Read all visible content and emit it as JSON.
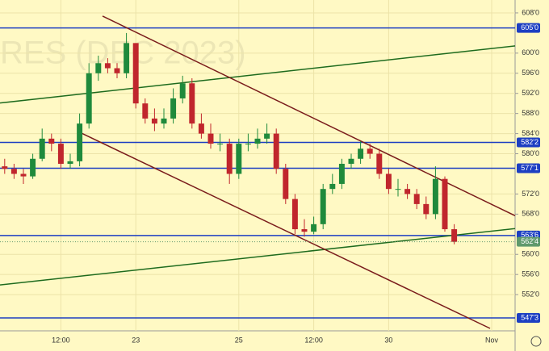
{
  "chart_data": {
    "type": "candlestick",
    "watermark": "RES (DEC 2023)",
    "up_color": "#1f8a3c",
    "down_color": "#c0262d",
    "xlim": [
      -0.5,
      54.5
    ],
    "xticks": [
      {
        "value": 6,
        "label": "12:00"
      },
      {
        "value": 14,
        "label": "23"
      },
      {
        "value": 25,
        "label": "25"
      },
      {
        "value": 33,
        "label": "12:00"
      },
      {
        "value": 41,
        "label": "30"
      },
      {
        "value": 52,
        "label": "Nov"
      }
    ],
    "ylim": [
      544.8,
      610.56
    ],
    "yticks": [
      {
        "value": 608,
        "label": "608'0"
      },
      {
        "value": 600,
        "label": "600'0"
      },
      {
        "value": 596,
        "label": "596'0"
      },
      {
        "value": 592,
        "label": "592'0"
      },
      {
        "value": 588,
        "label": "588'0"
      },
      {
        "value": 584,
        "label": "584'0"
      },
      {
        "value": 580,
        "label": "580'0"
      },
      {
        "value": 572,
        "label": "572'0"
      },
      {
        "value": 568,
        "label": "568'0"
      },
      {
        "value": 560,
        "label": "560'0"
      },
      {
        "value": 556,
        "label": "556'0"
      },
      {
        "value": 552,
        "label": "552'0"
      }
    ],
    "grid": true,
    "open": [
      577.5,
      577,
      576,
      575.5,
      579,
      583,
      582,
      578,
      578.5,
      586,
      596,
      598,
      597,
      596,
      602,
      590,
      587,
      586,
      587,
      591,
      594,
      586,
      584,
      582,
      582,
      576,
      582,
      582,
      583,
      584,
      577,
      571,
      565,
      564.5,
      566,
      573,
      574,
      578,
      579,
      581,
      580,
      576,
      573,
      573,
      572,
      570,
      568,
      575,
      565
    ],
    "high": [
      579,
      578,
      577,
      580,
      585,
      584,
      583,
      580,
      588,
      598,
      599.5,
      599,
      598,
      604,
      602,
      591,
      589,
      589,
      593,
      595.5,
      595,
      588,
      586,
      584,
      583,
      583,
      584,
      585,
      586,
      585,
      578,
      572,
      567,
      567.5,
      574,
      576,
      579,
      580,
      582.5,
      582,
      581,
      577,
      575,
      574,
      573,
      571.5,
      577.5,
      575.5,
      566
    ],
    "low": [
      576,
      575,
      574,
      575,
      578.5,
      580.5,
      577,
      577,
      577.5,
      585,
      594.5,
      596,
      595,
      595,
      589,
      586,
      584.5,
      585,
      586,
      590,
      585,
      583,
      581,
      580.5,
      574,
      575,
      580.5,
      581,
      582,
      576,
      570,
      564,
      563.5,
      564,
      565,
      572,
      573,
      577,
      578,
      579,
      575,
      572,
      571.5,
      571,
      569,
      567,
      567,
      564.5,
      562
    ],
    "close": [
      577,
      576,
      575.5,
      579,
      583,
      582,
      578,
      578.5,
      586,
      596,
      598,
      597,
      596,
      602,
      590,
      587,
      586,
      587,
      591,
      594,
      586,
      584,
      582,
      582,
      576,
      582,
      582,
      583,
      584,
      577,
      571,
      565,
      564.5,
      566,
      573,
      574,
      578,
      579,
      581,
      580,
      576,
      573,
      573,
      572,
      570,
      568,
      575,
      565,
      562.5
    ],
    "levels": [
      {
        "value": 605,
        "label": "605'0",
        "color": "#1d3fc2"
      },
      {
        "value": 582.25,
        "label": "582'2",
        "color": "#1d3fc2"
      },
      {
        "value": 577.125,
        "label": "577'1",
        "color": "#1d3fc2"
      },
      {
        "value": 563.75,
        "label": "563'6",
        "color": "#1d3fc2"
      },
      {
        "value": 547.375,
        "label": "547'3",
        "color": "#1d3fc2"
      }
    ],
    "last_price": {
      "value": 562.5,
      "label": "562'4",
      "color": "#5f9a6c"
    },
    "trendlines": [
      {
        "color": "#1e6b1e",
        "x": [
          -0.5,
          54.5
        ],
        "y": [
          590.08,
          601.44
        ]
      },
      {
        "color": "#1e6b1e",
        "x": [
          -0.5,
          54.5
        ],
        "y": [
          553.92,
          565.12
        ]
      },
      {
        "color": "#7a1c1c",
        "x": [
          10.45,
          54.5
        ],
        "y": [
          607.36,
          567.68
        ]
      },
      {
        "color": "#7a1c1c",
        "x": [
          8.12,
          51.83
        ],
        "y": [
          584.16,
          545.28
        ]
      }
    ]
  }
}
